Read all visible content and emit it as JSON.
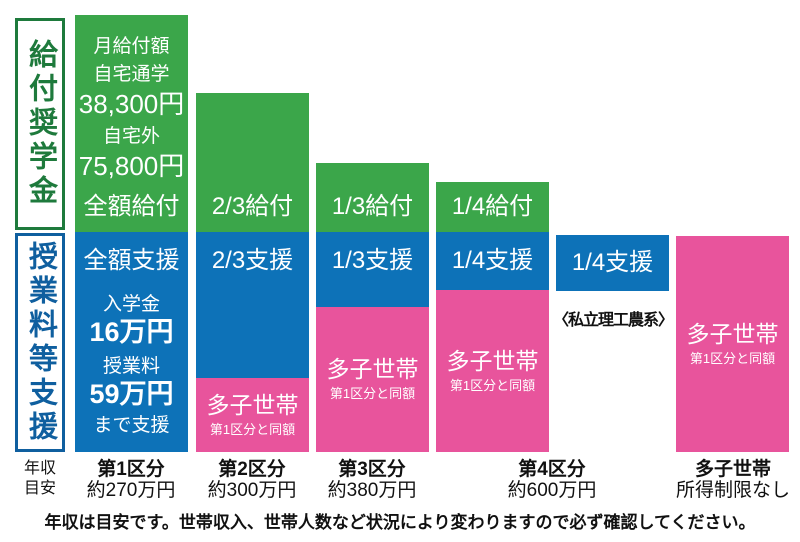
{
  "colors": {
    "green": "#3BA64A",
    "blue": "#0D72B8",
    "pink": "#E8549C",
    "dark_green": "#1E7A3C",
    "dark_blue": "#0F5F9F",
    "ink": "#111111"
  },
  "sidebar": {
    "grant": "給付奨学金",
    "tuition": "授業料等支援"
  },
  "columns": [
    {
      "category": "第1区分",
      "income": "約270万円",
      "grant_label": "全額給付",
      "support_label": "全額支援",
      "grant_details": {
        "line1": "月給付額",
        "line2": "自宅通学",
        "amount1": "38,300円",
        "line3": "自宅外",
        "amount2": "75,800円"
      },
      "support_details": {
        "line1": "入学金",
        "amount1": "16万円",
        "line2": "授業料",
        "amount2": "59万円",
        "line3": "まで支援"
      }
    },
    {
      "category": "第2区分",
      "income": "約300万円",
      "grant_label": "2/3給付",
      "support_label": "2/3支援",
      "multi_child": {
        "title": "多子世帯",
        "sub": "第1区分と同額"
      }
    },
    {
      "category": "第3区分",
      "income": "約380万円",
      "grant_label": "1/3給付",
      "support_label": "1/3支援",
      "multi_child": {
        "title": "多子世帯",
        "sub": "第1区分と同額"
      }
    },
    {
      "category": "第4区分",
      "income": "約600万円",
      "grant_label": "1/4給付",
      "support_label": "1/4支援",
      "multi_child": {
        "title": "多子世帯",
        "sub": "第1区分と同額"
      }
    },
    {
      "support_label": "1/4支援",
      "note": "〈私立理工農系〉"
    },
    {
      "category": "多子世帯",
      "income": "所得制限なし",
      "multi_child": {
        "title": "多子世帯",
        "sub": "第1区分と同額"
      }
    }
  ],
  "axis": {
    "ylabel_line1": "年収",
    "ylabel_line2": "目安"
  },
  "footer": {
    "note": "年収は目安です。世帯収入、世帯人数など状況により変わりますので必ず確認してください。"
  },
  "chart_data": {
    "type": "bar",
    "title": "給付奨学金・授業料等支援の区分別支援割合",
    "categories": [
      "第1区分 約270万円",
      "第2区分 約300万円",
      "第3区分 約380万円",
      "第4区分 約600万円",
      "第4区分〈私立理工農系〉",
      "多子世帯 所得制限なし"
    ],
    "series": [
      {
        "name": "給付奨学金",
        "labels": [
          "全額給付",
          "2/3給付",
          "1/3給付",
          "1/4給付",
          "",
          ""
        ],
        "fractions": [
          1,
          0.667,
          0.333,
          0.25,
          0,
          0
        ]
      },
      {
        "name": "授業料等支援",
        "labels": [
          "全額支援",
          "2/3支援",
          "1/3支援",
          "1/4支援",
          "1/4支援",
          "多子世帯 第1区分と同額"
        ],
        "fractions": [
          1,
          0.667,
          0.333,
          0.25,
          0.25,
          1
        ]
      }
    ],
    "annotations": [
      "多子世帯 第1区分と同額(第2〜第4区分)",
      "入学金16万円・授業料59万円まで支援",
      "月給付額 自宅通学38,300円 自宅外75,800円"
    ]
  }
}
